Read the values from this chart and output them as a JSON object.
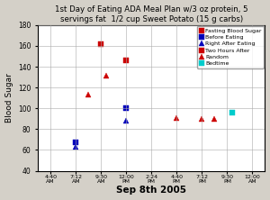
{
  "title": "1st Day of Eating ADA Meal Plan w/3 oz protein, 5\nservings fat  1/2 cup Sweet Potato (15 g carbs)",
  "xlabel": "Sep 8th 2005",
  "ylabel": "Blood Sugar",
  "xlim": [
    -0.5,
    8.5
  ],
  "ylim": [
    40,
    180
  ],
  "yticks": [
    40,
    60,
    80,
    100,
    120,
    140,
    160,
    180
  ],
  "xtick_labels": [
    "4:40\nAM",
    "7:12\nAM",
    "9:30\nAM",
    "12:00\nPM",
    "2:24\nPM",
    "4:40\nPM",
    "7:12\nPM",
    "9:30\nPM",
    "12:00\nAM"
  ],
  "series": {
    "Fasting Blood Sugar": {
      "x": [],
      "y": [],
      "color": "#cc0000",
      "marker": "s",
      "markersize": 5
    },
    "Before Eating": {
      "x": [
        1,
        3
      ],
      "y": [
        67,
        100
      ],
      "color": "#0000bb",
      "marker": "s",
      "markersize": 5
    },
    "Right After Eating": {
      "x": [
        1,
        3
      ],
      "y": [
        63,
        88
      ],
      "color": "#0000bb",
      "marker": "^",
      "markersize": 5
    },
    "Two Hours After": {
      "x": [
        2,
        3
      ],
      "y": [
        162,
        146
      ],
      "color": "#cc0000",
      "marker": "s",
      "markersize": 5
    },
    "Random": {
      "x": [
        1.5,
        2.2,
        5,
        6,
        6.5
      ],
      "y": [
        113,
        131,
        91,
        90,
        90
      ],
      "color": "#cc0000",
      "marker": "^",
      "markersize": 5
    },
    "Bedtime": {
      "x": [
        7.2
      ],
      "y": [
        96
      ],
      "color": "#00cccc",
      "marker": "s",
      "markersize": 5
    }
  },
  "legend_order": [
    "Fasting Blood Sugar",
    "Before Eating",
    "Right After Eating",
    "Two Hours After",
    "Random",
    "Bedtime"
  ],
  "legend_colors": {
    "Fasting Blood Sugar": "#cc0000",
    "Before Eating": "#0000bb",
    "Right After Eating": "#0000bb",
    "Two Hours After": "#cc0000",
    "Random": "#cc0000",
    "Bedtime": "#00cccc"
  },
  "legend_markers": {
    "Fasting Blood Sugar": "s",
    "Before Eating": "s",
    "Right After Eating": "^",
    "Two Hours After": "s",
    "Random": "^",
    "Bedtime": "s"
  },
  "bg_color": "#d4d0c8",
  "plot_bg_color": "#ffffff"
}
